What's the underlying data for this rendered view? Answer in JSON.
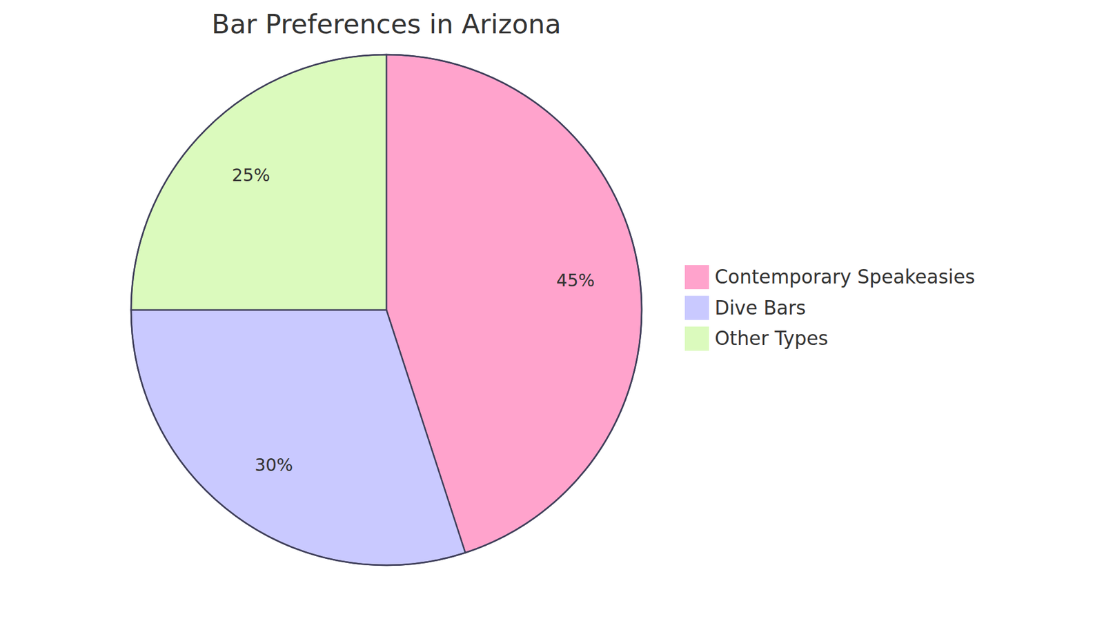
{
  "chart_data": {
    "type": "pie",
    "title": "Bar Preferences in Arizona",
    "categories": [
      "Contemporary Speakeasies",
      "Dive Bars",
      "Other Types"
    ],
    "values": [
      45,
      30,
      25
    ],
    "value_labels": [
      "45%",
      "30%",
      "25%"
    ],
    "colors": [
      "#ffa3cc",
      "#c9c9ff",
      "#dbfabd"
    ],
    "legend": "right",
    "data_labels": true
  }
}
